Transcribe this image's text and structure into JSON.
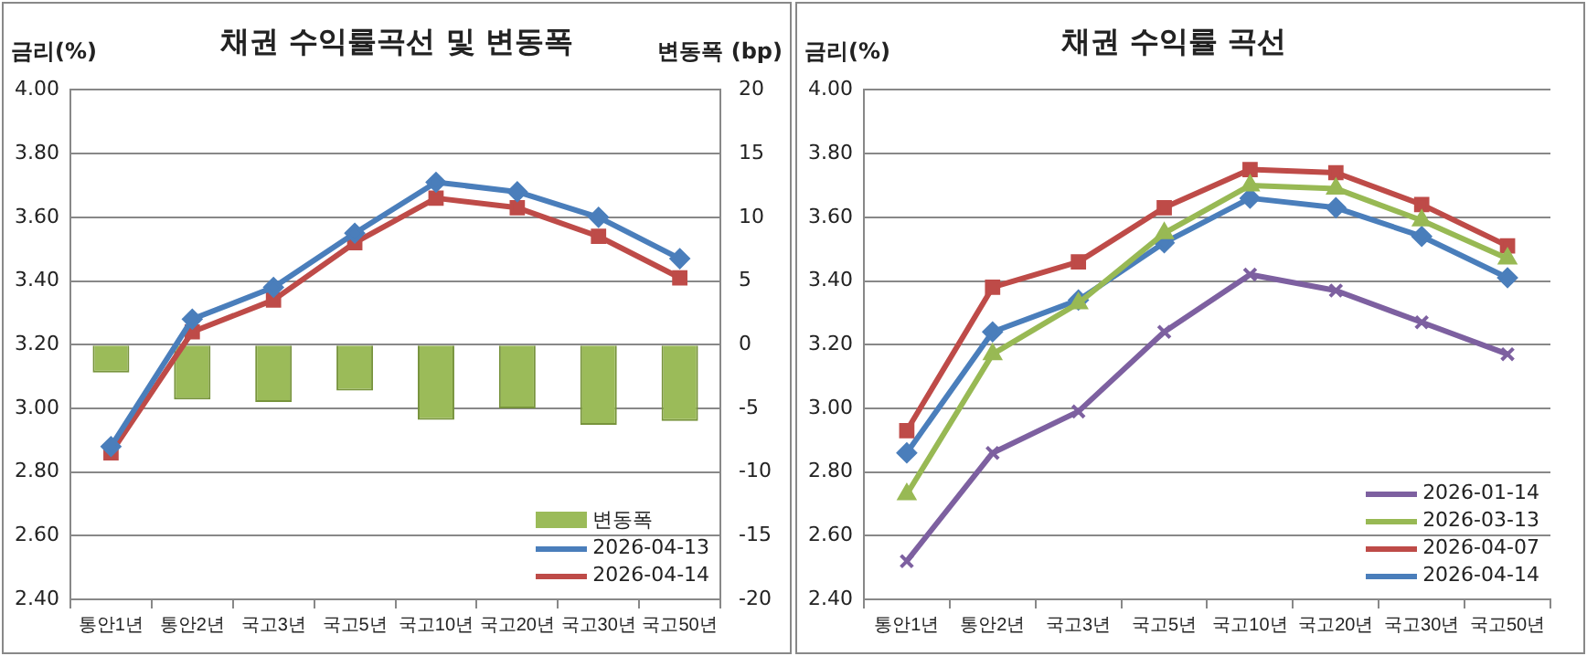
{
  "chart_data": [
    {
      "type": "bar",
      "title": "채권 수익률곡선 및 변동폭",
      "ylabel": "금리(%)",
      "y2label": "변동폭 (bp)",
      "categories": [
        "통안1년",
        "통안2년",
        "국고3년",
        "국고5년",
        "국고10년",
        "국고20년",
        "국고30년",
        "국고50년"
      ],
      "series": [
        {
          "name": "변동폭",
          "type": "bar",
          "axis": "y2",
          "color": "#9bbb59",
          "values": [
            -2.2,
            -4.3,
            -4.5,
            -3.6,
            -5.9,
            -5.0,
            -6.3,
            -6.0
          ]
        },
        {
          "name": "2026-04-13",
          "type": "line",
          "marker": "diamond",
          "color": "#4a7ebb",
          "values": [
            2.88,
            3.28,
            3.38,
            3.55,
            3.71,
            3.68,
            3.6,
            3.47
          ]
        },
        {
          "name": "2026-04-14",
          "type": "line",
          "marker": "square",
          "color": "#be4b48",
          "values": [
            2.86,
            3.24,
            3.34,
            3.52,
            3.66,
            3.63,
            3.54,
            3.41
          ]
        }
      ],
      "ylim": [
        2.4,
        4.0
      ],
      "yticks": [
        {
          "value": 2.4,
          "label": "2.40"
        },
        {
          "value": 2.6,
          "label": "2.60"
        },
        {
          "value": 2.8,
          "label": "2.80"
        },
        {
          "value": 3.0,
          "label": "3.00"
        },
        {
          "value": 3.2,
          "label": "3.20"
        },
        {
          "value": 3.4,
          "label": "3.40"
        },
        {
          "value": 3.6,
          "label": "3.60"
        },
        {
          "value": 3.8,
          "label": "3.80"
        },
        {
          "value": 4.0,
          "label": "4.00"
        }
      ],
      "y2lim": [
        -20,
        20
      ],
      "y2ticks": [
        -20,
        -15,
        -10,
        -5,
        0,
        5,
        10,
        15,
        20
      ],
      "grid": "y",
      "legend": "bottom right"
    },
    {
      "type": "line",
      "title": "채권 수익률 곡선",
      "ylabel": "금리(%)",
      "categories": [
        "통안1년",
        "통안2년",
        "국고3년",
        "국고5년",
        "국고10년",
        "국고20년",
        "국고30년",
        "국고50년"
      ],
      "series": [
        {
          "name": "2026-01-14",
          "marker": "cross",
          "color": "#7d60a0",
          "values": [
            2.52,
            2.86,
            2.99,
            3.24,
            3.42,
            3.37,
            3.27,
            3.17
          ]
        },
        {
          "name": "2026-03-13",
          "marker": "triangle",
          "color": "#98b954",
          "values": [
            2.73,
            3.17,
            3.33,
            3.55,
            3.7,
            3.69,
            3.59,
            3.47
          ]
        },
        {
          "name": "2026-04-07",
          "marker": "square",
          "color": "#be4b48",
          "values": [
            2.93,
            3.38,
            3.46,
            3.63,
            3.75,
            3.74,
            3.64,
            3.51
          ]
        },
        {
          "name": "2026-04-14",
          "marker": "diamond",
          "color": "#4a7ebb",
          "values": [
            2.86,
            3.24,
            3.34,
            3.52,
            3.66,
            3.63,
            3.54,
            3.41
          ]
        }
      ],
      "ylim": [
        2.4,
        4.0
      ],
      "yticks": [
        {
          "value": 2.4,
          "label": "2.40"
        },
        {
          "value": 2.6,
          "label": "2.60"
        },
        {
          "value": 2.8,
          "label": "2.80"
        },
        {
          "value": 3.0,
          "label": "3.00"
        },
        {
          "value": 3.2,
          "label": "3.20"
        },
        {
          "value": 3.4,
          "label": "3.40"
        },
        {
          "value": 3.6,
          "label": "3.60"
        },
        {
          "value": 3.8,
          "label": "3.80"
        },
        {
          "value": 4.0,
          "label": "4.00"
        }
      ],
      "grid": "y",
      "legend": "bottom right"
    }
  ]
}
